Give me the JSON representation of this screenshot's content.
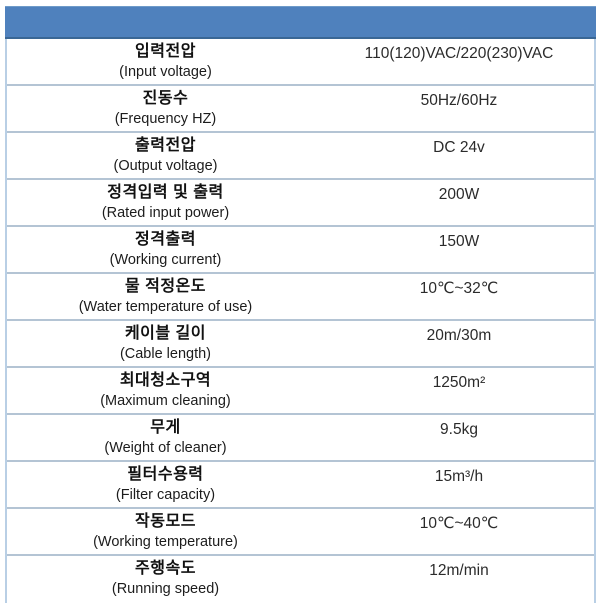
{
  "colors": {
    "header_bar": "#4f81bd",
    "row_divider": "#b4c4d4",
    "outer_border": "#b9cfe5"
  },
  "table": {
    "rows": [
      {
        "kr": "입력전압",
        "en": "(Input voltage)",
        "value": "110(120)VAC/220(230)VAC"
      },
      {
        "kr": "진동수",
        "en": "(Frequency HZ)",
        "value": "50Hz/60Hz"
      },
      {
        "kr": "출력전압",
        "en": "(Output voltage)",
        "value": "DC 24v"
      },
      {
        "kr": "정격입력 및 출력",
        "en": "(Rated input power)",
        "value": "200W"
      },
      {
        "kr": "정격출력",
        "en": "(Working current)",
        "value": "150W"
      },
      {
        "kr": "물 적정온도",
        "en": "(Water temperature of use)",
        "value": "10℃~32℃"
      },
      {
        "kr": "케이블 길이",
        "en": "(Cable length)",
        "value": "20m/30m"
      },
      {
        "kr": "최대청소구역",
        "en": "(Maximum cleaning)",
        "value": "1250m²"
      },
      {
        "kr": "무게",
        "en": "(Weight of cleaner)",
        "value": "9.5kg"
      },
      {
        "kr": "필터수용력",
        "en": "(Filter capacity)",
        "value": "15m³/h"
      },
      {
        "kr": "작동모드",
        "en": "(Working temperature)",
        "value": "10℃~40℃"
      },
      {
        "kr": "주행속도",
        "en": "(Running speed)",
        "value": "12m/min"
      }
    ]
  }
}
